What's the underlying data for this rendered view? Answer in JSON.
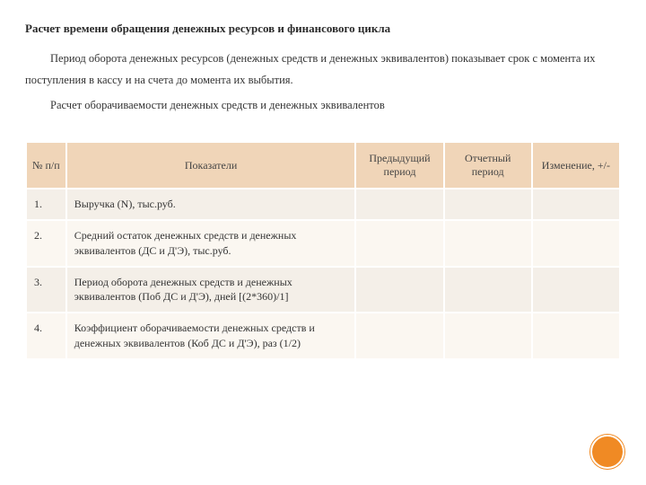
{
  "text": {
    "title": "Расчет времени обращения денежных ресурсов  и финансового цикла",
    "para1": "Период оборота денежных ресурсов (денежных средств и денежных эквивалентов) показывает срок с момента их поступления в кассу и на счета до момента их выбытия.",
    "para2": "Расчет оборачиваемости денежных средств и денежных эквивалентов"
  },
  "table": {
    "header": {
      "col_num": "№ п/п",
      "col_indicator": "Показатели",
      "col_prev": "Предыдущий период",
      "col_curr": "Отчетный период",
      "col_change": "Изменение, +/-"
    },
    "header_bg": "#f0d5b8",
    "row_bg_a": "#f4efe8",
    "row_bg_b": "#fbf7f1",
    "rows": [
      {
        "n": "1.",
        "label": "Выручка (N), тыс.руб.",
        "prev": "",
        "curr": "",
        "change": ""
      },
      {
        "n": "2.",
        "label": "Средний остаток денежных средств и  денежных эквивалентов (ДС и Д'Э), тыс.руб.",
        "prev": "",
        "curr": "",
        "change": ""
      },
      {
        "n": "3.",
        "label": "Период оборота денежных средств и денежных эквивалентов (Поб ДС и Д'Э), дней [(2*360)/1]",
        "prev": "",
        "curr": "",
        "change": ""
      },
      {
        "n": "4.",
        "label": "Коэффициент оборачиваемости денежных средств и денежных эквивалентов (Коб ДС и Д'Э), раз (1/2)",
        "prev": "",
        "curr": "",
        "change": ""
      }
    ]
  },
  "circle_color": "#f08a24"
}
